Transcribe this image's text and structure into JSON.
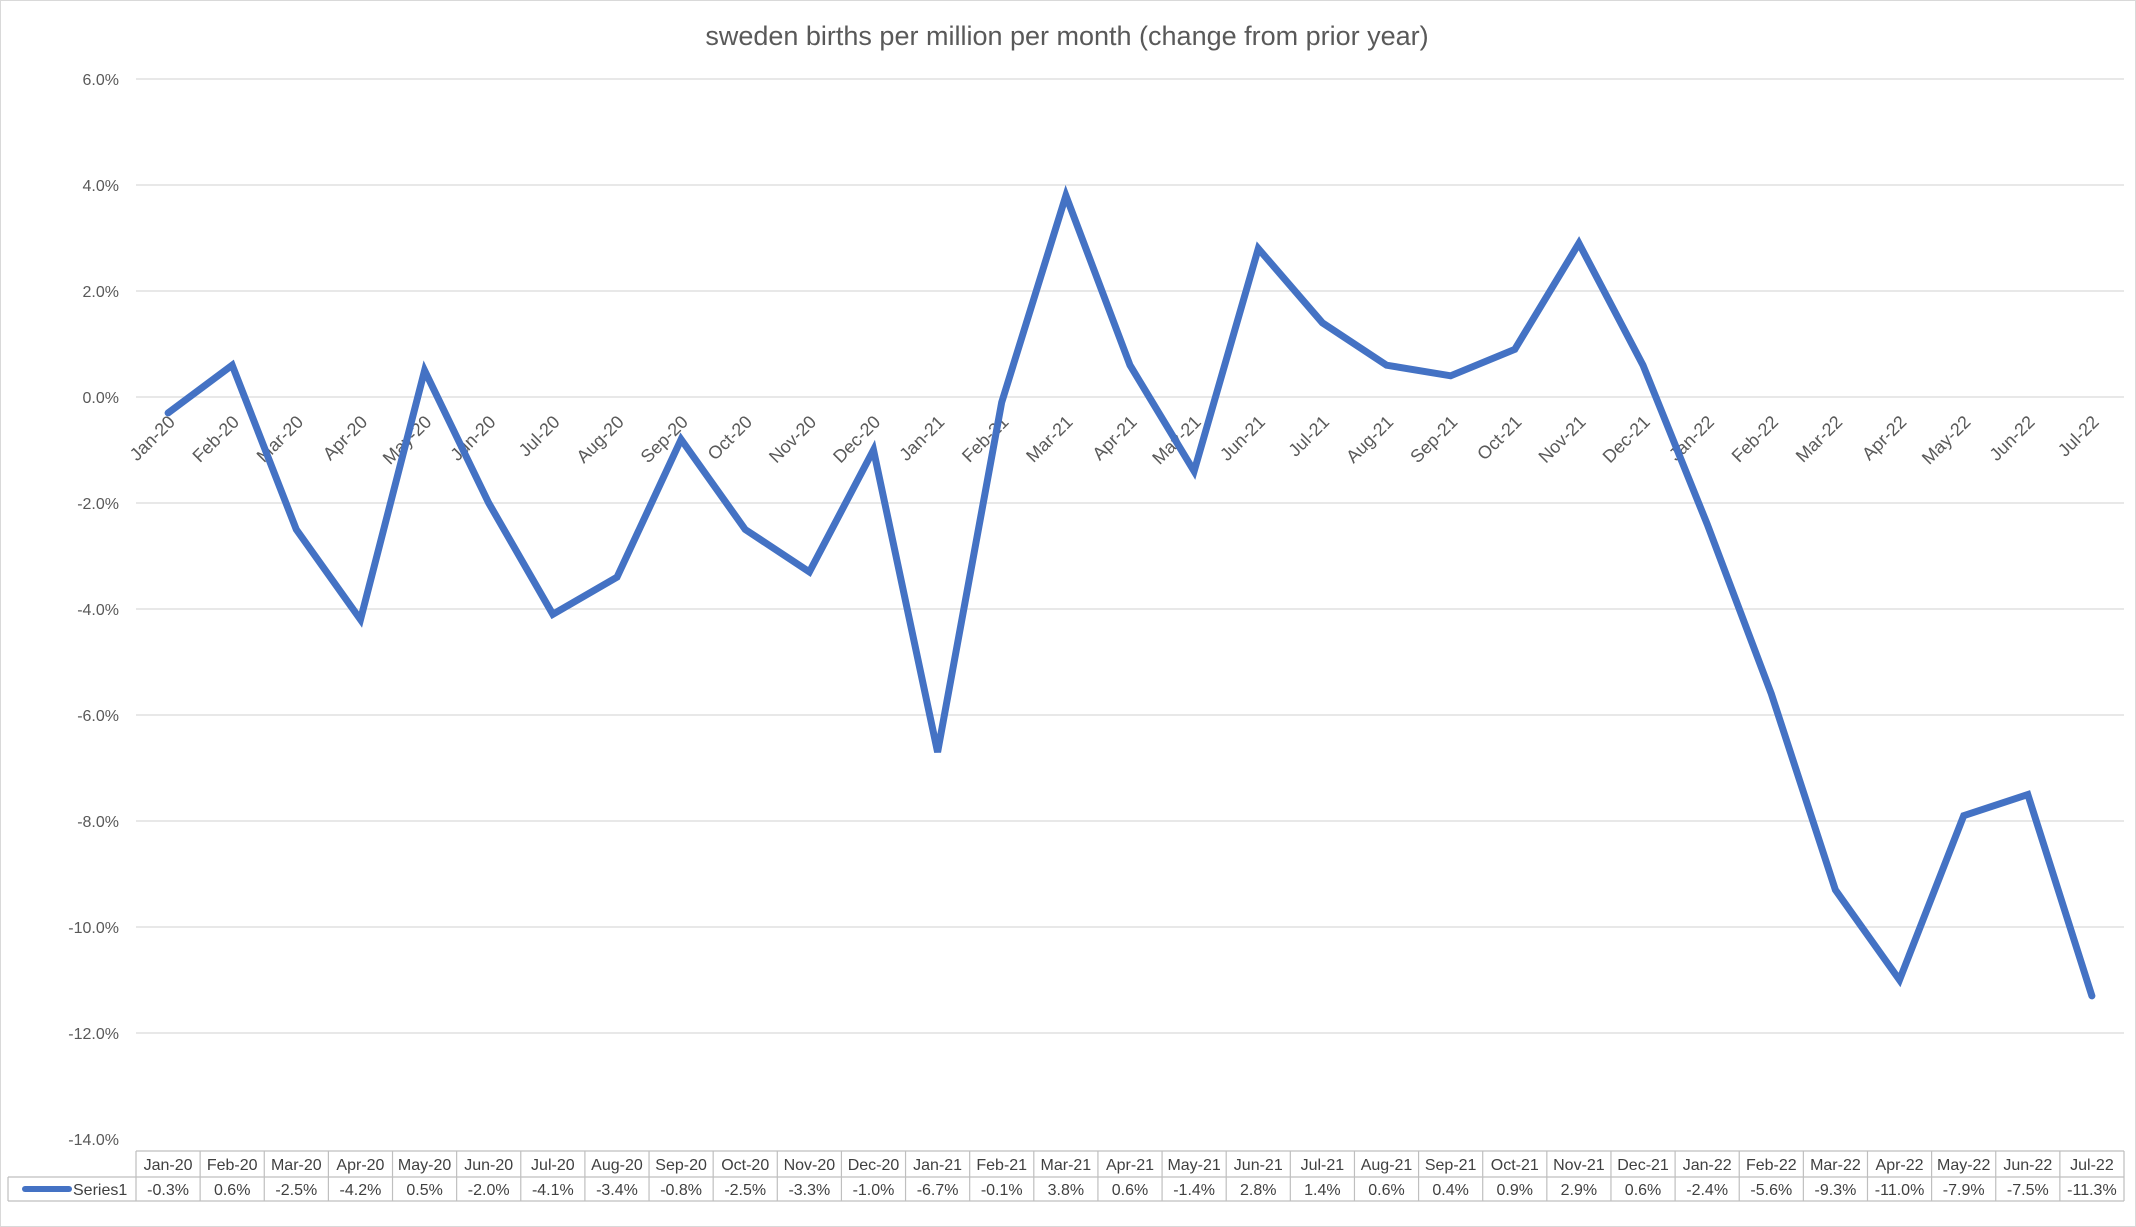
{
  "chart_data": {
    "type": "line",
    "title": "sweden births per million per month (change from prior year)",
    "categories": [
      "Jan-20",
      "Feb-20",
      "Mar-20",
      "Apr-20",
      "May-20",
      "Jun-20",
      "Jul-20",
      "Aug-20",
      "Sep-20",
      "Oct-20",
      "Nov-20",
      "Dec-20",
      "Jan-21",
      "Feb-21",
      "Mar-21",
      "Apr-21",
      "May-21",
      "Jun-21",
      "Jul-21",
      "Aug-21",
      "Sep-21",
      "Oct-21",
      "Nov-21",
      "Dec-21",
      "Jan-22",
      "Feb-22",
      "Mar-22",
      "Apr-22",
      "May-22",
      "Jun-22",
      "Jul-22"
    ],
    "series": [
      {
        "name": "Series1",
        "color": "#4472C4",
        "values": [
          -0.3,
          0.6,
          -2.5,
          -4.2,
          0.5,
          -2.0,
          -4.1,
          -3.4,
          -0.8,
          -2.5,
          -3.3,
          -1.0,
          -6.7,
          -0.1,
          3.8,
          0.6,
          -1.4,
          2.8,
          1.4,
          0.6,
          0.4,
          0.9,
          2.9,
          0.6,
          -2.4,
          -5.6,
          -9.3,
          -11.0,
          -7.9,
          -7.5,
          -11.3
        ],
        "labels": [
          "-0.3%",
          "0.6%",
          "-2.5%",
          "-4.2%",
          "0.5%",
          "-2.0%",
          "-4.1%",
          "-3.4%",
          "-0.8%",
          "-2.5%",
          "-3.3%",
          "-1.0%",
          "-6.7%",
          "-0.1%",
          "3.8%",
          "0.6%",
          "-1.4%",
          "2.8%",
          "1.4%",
          "0.6%",
          "0.4%",
          "0.9%",
          "2.9%",
          "0.6%",
          "-2.4%",
          "-5.6%",
          "-9.3%",
          "-11.0%",
          "-7.9%",
          "-7.5%",
          "-11.3%"
        ]
      }
    ],
    "yticks": [
      "6.0%",
      "4.0%",
      "2.0%",
      "0.0%",
      "-2.0%",
      "-4.0%",
      "-6.0%",
      "-8.0%",
      "-10.0%",
      "-12.0%",
      "-14.0%"
    ],
    "ylim": [
      -14,
      6
    ],
    "grid": true,
    "data_table": true,
    "legend": "data-table-row-header",
    "gridline_color": "#D9D9D9",
    "text_color": "#595959"
  }
}
